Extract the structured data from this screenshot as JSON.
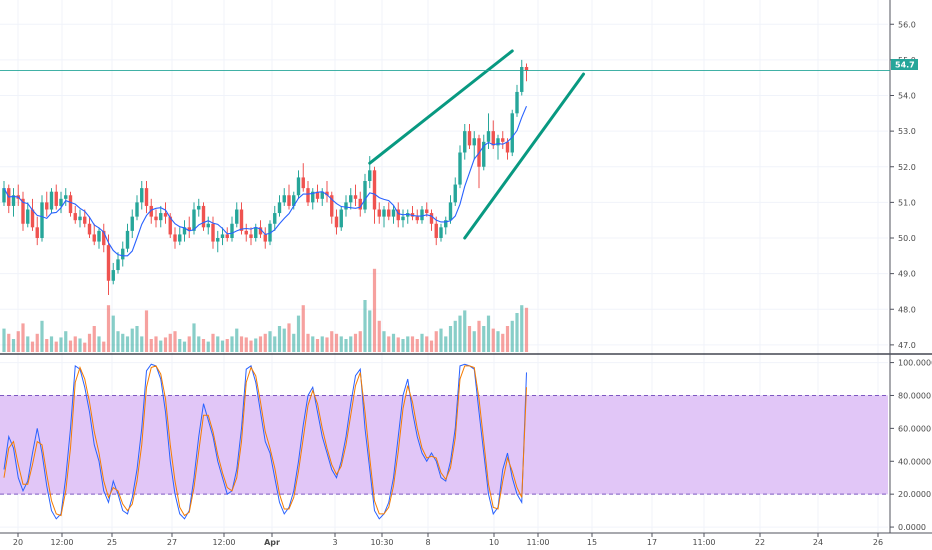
{
  "chart_data": [
    {
      "type": "candlestick",
      "panel": "price",
      "y_axis_ticks": [
        "56.0",
        "55.0",
        "54.0",
        "53.0",
        "52.0",
        "51.0",
        "50.0",
        "49.0",
        "48.0",
        "47.0"
      ],
      "ylim": [
        46.8,
        56.4
      ],
      "last_price_label": "54.7",
      "last_price": 54.7,
      "candles": [
        [
          51.0,
          51.6,
          50.9,
          51.4
        ],
        [
          51.4,
          51.5,
          50.7,
          50.9
        ],
        [
          50.9,
          51.4,
          50.6,
          51.2
        ],
        [
          51.2,
          51.5,
          50.9,
          51.1
        ],
        [
          51.1,
          51.3,
          50.2,
          50.4
        ],
        [
          50.4,
          51.0,
          50.3,
          50.8
        ],
        [
          50.8,
          51.1,
          50.2,
          50.3
        ],
        [
          50.3,
          50.6,
          49.8,
          50.0
        ],
        [
          50.0,
          51.2,
          49.9,
          51.0
        ],
        [
          51.0,
          51.3,
          50.6,
          50.8
        ],
        [
          50.8,
          51.4,
          50.7,
          51.3
        ],
        [
          51.3,
          51.5,
          50.8,
          50.9
        ],
        [
          50.9,
          51.3,
          50.7,
          51.1
        ],
        [
          51.1,
          51.4,
          50.9,
          51.2
        ],
        [
          51.2,
          51.3,
          50.6,
          50.7
        ],
        [
          50.7,
          50.9,
          50.4,
          50.5
        ],
        [
          50.5,
          50.8,
          50.3,
          50.6
        ],
        [
          50.6,
          50.8,
          50.3,
          50.4
        ],
        [
          50.4,
          50.6,
          50.0,
          50.1
        ],
        [
          50.1,
          50.4,
          49.8,
          49.9
        ],
        [
          49.9,
          50.3,
          49.7,
          50.2
        ],
        [
          50.2,
          50.4,
          49.6,
          49.8
        ],
        [
          49.8,
          50.1,
          48.4,
          48.8
        ],
        [
          48.8,
          49.3,
          48.7,
          49.1
        ],
        [
          49.1,
          49.6,
          49.0,
          49.4
        ],
        [
          49.4,
          49.9,
          49.2,
          49.7
        ],
        [
          49.7,
          50.4,
          49.6,
          50.2
        ],
        [
          50.2,
          50.8,
          50.0,
          50.6
        ],
        [
          50.6,
          51.2,
          50.5,
          51.0
        ],
        [
          51.0,
          51.6,
          50.8,
          51.4
        ],
        [
          51.4,
          51.6,
          50.7,
          50.9
        ],
        [
          50.9,
          51.1,
          50.4,
          50.6
        ],
        [
          50.6,
          50.8,
          50.3,
          50.5
        ],
        [
          50.5,
          50.9,
          50.3,
          50.7
        ],
        [
          50.7,
          51.0,
          50.4,
          50.6
        ],
        [
          50.6,
          50.7,
          50.0,
          50.1
        ],
        [
          50.1,
          50.3,
          49.7,
          49.9
        ],
        [
          49.9,
          50.3,
          49.8,
          50.1
        ],
        [
          50.1,
          50.5,
          49.9,
          50.3
        ],
        [
          50.3,
          50.6,
          50.0,
          50.2
        ],
        [
          50.2,
          51.0,
          50.1,
          50.8
        ],
        [
          50.8,
          51.1,
          50.6,
          50.9
        ],
        [
          50.9,
          51.0,
          50.2,
          50.3
        ],
        [
          50.3,
          50.6,
          50.1,
          50.4
        ],
        [
          50.4,
          50.6,
          49.7,
          49.9
        ],
        [
          49.9,
          50.2,
          49.6,
          50.0
        ],
        [
          50.0,
          50.3,
          49.8,
          50.1
        ],
        [
          50.1,
          50.3,
          49.9,
          50.0
        ],
        [
          50.0,
          50.6,
          49.9,
          50.4
        ],
        [
          50.4,
          51.0,
          50.3,
          50.8
        ],
        [
          50.8,
          51.0,
          50.1,
          50.2
        ],
        [
          50.2,
          50.4,
          49.9,
          50.1
        ],
        [
          50.1,
          50.3,
          49.8,
          50.0
        ],
        [
          50.0,
          50.4,
          49.9,
          50.3
        ],
        [
          50.3,
          50.5,
          50.0,
          50.1
        ],
        [
          50.1,
          50.3,
          49.7,
          49.9
        ],
        [
          49.9,
          50.5,
          49.8,
          50.4
        ],
        [
          50.4,
          50.9,
          50.2,
          50.7
        ],
        [
          50.7,
          51.2,
          50.6,
          51.0
        ],
        [
          51.0,
          51.4,
          50.9,
          51.2
        ],
        [
          51.2,
          51.5,
          50.8,
          50.9
        ],
        [
          50.9,
          51.3,
          50.8,
          51.2
        ],
        [
          51.2,
          51.9,
          51.1,
          51.7
        ],
        [
          51.7,
          52.1,
          51.3,
          51.4
        ],
        [
          51.4,
          51.6,
          50.9,
          51.0
        ],
        [
          51.0,
          51.4,
          50.8,
          51.3
        ],
        [
          51.3,
          51.5,
          51.0,
          51.1
        ],
        [
          51.1,
          51.4,
          50.9,
          51.3
        ],
        [
          51.3,
          51.6,
          51.0,
          51.2
        ],
        [
          51.2,
          51.3,
          50.4,
          50.6
        ],
        [
          50.6,
          50.8,
          50.1,
          50.3
        ],
        [
          50.3,
          50.9,
          50.2,
          50.8
        ],
        [
          50.8,
          51.2,
          50.6,
          51.0
        ],
        [
          51.0,
          51.4,
          50.8,
          51.2
        ],
        [
          51.2,
          51.5,
          50.9,
          51.1
        ],
        [
          51.1,
          51.3,
          50.6,
          50.8
        ],
        [
          50.8,
          51.8,
          50.7,
          51.6
        ],
        [
          51.6,
          52.3,
          51.4,
          51.9
        ],
        [
          51.9,
          52.0,
          50.4,
          50.8
        ],
        [
          50.8,
          51.0,
          50.4,
          50.6
        ],
        [
          50.6,
          50.9,
          50.3,
          50.8
        ],
        [
          50.8,
          51.0,
          50.5,
          50.6
        ],
        [
          50.6,
          50.9,
          50.4,
          50.8
        ],
        [
          50.8,
          51.0,
          50.3,
          50.5
        ],
        [
          50.5,
          50.8,
          50.3,
          50.6
        ],
        [
          50.6,
          50.8,
          50.4,
          50.7
        ],
        [
          50.7,
          50.9,
          50.5,
          50.6
        ],
        [
          50.6,
          50.8,
          50.4,
          50.5
        ],
        [
          50.5,
          50.9,
          50.4,
          50.8
        ],
        [
          50.8,
          51.0,
          50.6,
          50.7
        ],
        [
          50.7,
          50.8,
          50.2,
          50.4
        ],
        [
          50.4,
          50.6,
          49.8,
          50.0
        ],
        [
          50.0,
          50.4,
          49.9,
          50.3
        ],
        [
          50.3,
          50.6,
          50.1,
          50.5
        ],
        [
          50.5,
          51.2,
          50.4,
          51.0
        ],
        [
          51.0,
          51.7,
          50.9,
          51.5
        ],
        [
          51.5,
          52.6,
          51.4,
          52.4
        ],
        [
          52.4,
          53.2,
          52.2,
          53.0
        ],
        [
          53.0,
          53.2,
          52.5,
          52.6
        ],
        [
          52.6,
          53.0,
          52.2,
          52.8
        ],
        [
          52.8,
          52.9,
          51.4,
          52.0
        ],
        [
          52.0,
          52.9,
          51.9,
          52.7
        ],
        [
          52.7,
          53.5,
          52.5,
          53.0
        ],
        [
          53.0,
          53.3,
          52.5,
          52.6
        ],
        [
          52.6,
          52.9,
          52.2,
          52.8
        ],
        [
          52.8,
          53.0,
          52.5,
          52.7
        ],
        [
          52.7,
          52.8,
          52.2,
          52.4
        ],
        [
          52.4,
          53.6,
          52.3,
          53.5
        ],
        [
          53.5,
          54.3,
          53.4,
          54.1
        ],
        [
          54.1,
          55.0,
          54.0,
          54.8
        ],
        [
          54.8,
          54.9,
          54.4,
          54.7
        ]
      ],
      "volume": [
        0.45,
        0.35,
        0.25,
        0.4,
        0.55,
        0.3,
        0.2,
        0.35,
        0.6,
        0.25,
        0.3,
        0.2,
        0.28,
        0.4,
        0.22,
        0.3,
        0.26,
        0.18,
        0.35,
        0.5,
        0.3,
        0.2,
        0.9,
        0.7,
        0.4,
        0.35,
        0.3,
        0.45,
        0.5,
        0.3,
        0.8,
        0.25,
        0.3,
        0.22,
        0.28,
        0.35,
        0.4,
        0.25,
        0.2,
        0.3,
        0.55,
        0.3,
        0.25,
        0.2,
        0.35,
        0.3,
        0.22,
        0.25,
        0.3,
        0.45,
        0.3,
        0.28,
        0.22,
        0.26,
        0.3,
        0.35,
        0.4,
        0.3,
        0.5,
        0.45,
        0.55,
        0.35,
        0.7,
        0.9,
        0.35,
        0.3,
        0.25,
        0.3,
        0.28,
        0.4,
        0.35,
        0.3,
        0.25,
        0.3,
        0.35,
        0.4,
        1.0,
        0.8,
        1.6,
        0.6,
        0.4,
        0.3,
        0.35,
        0.28,
        0.25,
        0.3,
        0.3,
        0.25,
        0.35,
        0.3,
        0.22,
        0.4,
        0.45,
        0.3,
        0.5,
        0.6,
        0.7,
        0.8,
        0.5,
        0.4,
        0.6,
        0.5,
        0.7,
        0.45,
        0.4,
        0.35,
        0.5,
        0.6,
        0.75,
        0.9,
        0.85
      ]
    },
    {
      "type": "line",
      "panel": "stochastic",
      "y_axis_ticks": [
        "100.0000",
        "80.0000",
        "60.0000",
        "40.0000",
        "20.0000",
        "0.0000"
      ],
      "ylim": [
        -3,
        104
      ],
      "band": [
        20,
        80
      ],
      "series": [
        {
          "color": "#2962ff",
          "values": [
            35,
            55,
            48,
            30,
            22,
            28,
            45,
            60,
            45,
            25,
            10,
            5,
            8,
            30,
            60,
            98,
            96,
            85,
            70,
            50,
            40,
            22,
            15,
            28,
            20,
            10,
            8,
            18,
            35,
            60,
            95,
            99,
            98,
            90,
            70,
            40,
            20,
            8,
            5,
            10,
            30,
            55,
            75,
            65,
            55,
            40,
            30,
            20,
            22,
            35,
            60,
            96,
            98,
            88,
            70,
            52,
            45,
            30,
            15,
            8,
            12,
            22,
            40,
            62,
            80,
            85,
            70,
            55,
            45,
            35,
            30,
            40,
            55,
            75,
            92,
            96,
            60,
            35,
            10,
            5,
            8,
            15,
            30,
            55,
            80,
            90,
            70,
            55,
            45,
            40,
            45,
            40,
            30,
            28,
            40,
            60,
            98,
            99,
            98,
            96,
            70,
            45,
            20,
            8,
            12,
            35,
            45,
            30,
            20,
            15,
            94
          ]
        },
        {
          "color": "#f57c00",
          "values": [
            30,
            48,
            52,
            38,
            26,
            26,
            38,
            52,
            50,
            32,
            16,
            8,
            7,
            22,
            48,
            88,
            97,
            90,
            76,
            58,
            45,
            28,
            18,
            24,
            22,
            14,
            10,
            14,
            28,
            50,
            85,
            97,
            98,
            93,
            78,
            50,
            28,
            12,
            7,
            9,
            24,
            46,
            68,
            68,
            58,
            44,
            33,
            24,
            22,
            30,
            52,
            88,
            97,
            92,
            76,
            58,
            48,
            36,
            20,
            11,
            11,
            18,
            34,
            54,
            74,
            83,
            75,
            60,
            48,
            38,
            32,
            37,
            50,
            68,
            86,
            94,
            70,
            42,
            16,
            8,
            8,
            12,
            25,
            46,
            72,
            86,
            76,
            60,
            48,
            42,
            43,
            42,
            33,
            29,
            36,
            54,
            90,
            98,
            98,
            97,
            78,
            52,
            26,
            12,
            11,
            28,
            42,
            34,
            24,
            18,
            85
          ]
        }
      ]
    }
  ],
  "x_axis": {
    "labels": [
      "20",
      "12:00",
      "25",
      "27",
      "12:00",
      "Apr",
      "3",
      "10:30",
      "8",
      "10",
      "11:00",
      "15",
      "17",
      "11:00",
      "22",
      "24",
      "26"
    ],
    "hover_label": "11:00"
  },
  "colors": {
    "up": "#26a69a",
    "down": "#ef5350",
    "ma": "#2962ff",
    "channel": "#089981",
    "band_fill": "#e1c6f7",
    "band_line": "#7e57c2",
    "price_line": "#26a69a"
  }
}
